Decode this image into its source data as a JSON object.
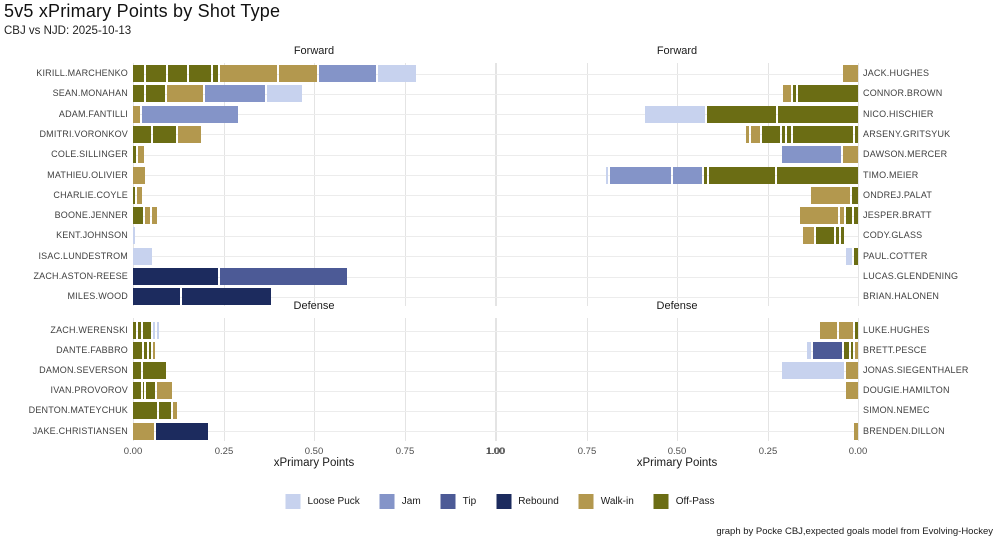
{
  "chart_data": {
    "type": "bar",
    "variant": "horizontal-stacked-faceted-pyramid",
    "title": "5v5 xPrimary Points by Shot Type",
    "subtitle": "CBJ vs NJD: 2025-10-13",
    "caption": "graph by Pocke CBJ,expected goals model from Evolving-Hockey",
    "x_axis": {
      "label": "xPrimary Points",
      "ticks": [
        "0.00",
        "0.25",
        "0.50",
        "0.75",
        "1.00"
      ],
      "tick_values": [
        0,
        0.25,
        0.5,
        0.75,
        1.0
      ],
      "lim": [
        0,
        1
      ],
      "right_panel_reversed": true,
      "grid": "major-vertical-and-row-lines"
    },
    "legend_position": "bottom",
    "shot_types": [
      {
        "key": "loose",
        "label": "Loose Puck",
        "color": "#c7d2ee"
      },
      {
        "key": "jam",
        "label": "Jam",
        "color": "#8494c8"
      },
      {
        "key": "tip",
        "label": "Tip",
        "color": "#4c5a96"
      },
      {
        "key": "rebound",
        "label": "Rebound",
        "color": "#1c2b5e"
      },
      {
        "key": "walkin",
        "label": "Walk-in",
        "color": "#b3984e"
      },
      {
        "key": "offpass",
        "label": "Off-Pass",
        "color": "#6b6d14"
      }
    ],
    "facets": [
      {
        "label": "Forward",
        "side": "left",
        "team": "CBJ",
        "rows": [
          {
            "player": "KIRILL.MARCHENKO",
            "segments": [
              [
                "offpass",
                0.03
              ],
              [
                "offpass",
                0.055
              ],
              [
                "offpass",
                0.052
              ],
              [
                "offpass",
                0.063
              ],
              [
                "offpass",
                0.014
              ],
              [
                "walkin",
                0.157
              ],
              [
                "walkin",
                0.105
              ],
              [
                "jam",
                0.157
              ],
              [
                "loose",
                0.105
              ]
            ]
          },
          {
            "player": "SEAN.MONAHAN",
            "segments": [
              [
                "offpass",
                0.03
              ],
              [
                "offpass",
                0.053
              ],
              [
                "walkin",
                0.098
              ],
              [
                "jam",
                0.166
              ],
              [
                "loose",
                0.097
              ]
            ]
          },
          {
            "player": "ADAM.FANTILLI",
            "segments": [
              [
                "walkin",
                0.018
              ],
              [
                "jam",
                0.267
              ]
            ]
          },
          {
            "player": "DMITRI.VORONKOV",
            "segments": [
              [
                "offpass",
                0.049
              ],
              [
                "offpass",
                0.064
              ],
              [
                "walkin",
                0.063
              ]
            ]
          },
          {
            "player": "COLE.SILLINGER",
            "segments": [
              [
                "offpass",
                0.007
              ],
              [
                "walkin",
                0.018
              ]
            ]
          },
          {
            "player": "MATHIEU.OLIVIER",
            "segments": [
              [
                "walkin",
                0.033
              ]
            ]
          },
          {
            "player": "CHARLIE.COYLE",
            "segments": [
              [
                "offpass",
                0.006
              ],
              [
                "walkin",
                0.013
              ]
            ]
          },
          {
            "player": "BOONE.JENNER",
            "segments": [
              [
                "offpass",
                0.029
              ],
              [
                "walkin",
                0.013
              ],
              [
                "walkin",
                0.014
              ]
            ]
          },
          {
            "player": "KENT.JOHNSON",
            "segments": [
              [
                "loose",
                0.004
              ]
            ]
          },
          {
            "player": "ISAC.LUNDESTROM",
            "segments": [
              [
                "loose",
                0.052
              ]
            ]
          },
          {
            "player": "ZACH.ASTON-REESE",
            "segments": [
              [
                "rebound",
                0.235
              ],
              [
                "tip",
                0.352
              ]
            ]
          },
          {
            "player": "MILES.WOOD",
            "segments": [
              [
                "rebound",
                0.13
              ],
              [
                "rebound",
                0.245
              ]
            ]
          }
        ]
      },
      {
        "label": "Forward",
        "side": "right",
        "team": "NJD",
        "rows": [
          {
            "player": "JACK.HUGHES",
            "segments": [
              [
                "walkin",
                0.041
              ]
            ]
          },
          {
            "player": "CONNOR.BROWN",
            "segments": [
              [
                "offpass",
                0.166
              ],
              [
                "offpass",
                0.007
              ],
              [
                "walkin",
                0.023
              ]
            ]
          },
          {
            "player": "NICO.HISCHIER",
            "segments": [
              [
                "offpass",
                0.221
              ],
              [
                "offpass",
                0.19
              ],
              [
                "loose",
                0.166
              ]
            ]
          },
          {
            "player": "ARSENY.GRITSYUK",
            "segments": [
              [
                "offpass",
                0.007
              ],
              [
                "offpass",
                0.168
              ],
              [
                "offpass",
                0.009
              ],
              [
                "offpass",
                0.01
              ],
              [
                "offpass",
                0.05
              ],
              [
                "walkin",
                0.025
              ],
              [
                "walkin",
                0.007
              ]
            ]
          },
          {
            "player": "DAWSON.MERCER",
            "segments": [
              [
                "walkin",
                0.041
              ],
              [
                "jam",
                0.163
              ]
            ]
          },
          {
            "player": "TIMO.MEIER",
            "segments": [
              [
                "offpass",
                0.224
              ],
              [
                "offpass",
                0.182
              ],
              [
                "offpass",
                0.009
              ],
              [
                "jam",
                0.08
              ],
              [
                "jam",
                0.168
              ],
              [
                "loose",
                0.007
              ]
            ]
          },
          {
            "player": "ONDREJ.PALAT",
            "segments": [
              [
                "offpass",
                0.017
              ],
              [
                "walkin",
                0.108
              ]
            ]
          },
          {
            "player": "JESPER.BRATT",
            "segments": [
              [
                "offpass",
                0.012
              ],
              [
                "offpass",
                0.015
              ],
              [
                "walkin",
                0.012
              ],
              [
                "walkin",
                0.104
              ]
            ]
          },
          {
            "player": "CODY.GLASS",
            "offset": 0.038,
            "segments": [
              [
                "offpass",
                0.009
              ],
              [
                "offpass",
                0.009
              ],
              [
                "offpass",
                0.05
              ],
              [
                "walkin",
                0.03
              ]
            ]
          },
          {
            "player": "PAUL.COTTER",
            "segments": [
              [
                "offpass",
                0.012
              ],
              [
                "loose",
                0.015
              ]
            ]
          },
          {
            "player": "LUCAS.GLENDENING",
            "segments": []
          },
          {
            "player": "BRIAN.HALONEN",
            "segments": []
          }
        ]
      },
      {
        "label": "Defense",
        "side": "left",
        "team": "CBJ",
        "rows": [
          {
            "player": "ZACH.WERENSKI",
            "segments": [
              [
                "offpass",
                0.007
              ],
              [
                "offpass",
                0.009
              ],
              [
                "offpass",
                0.022
              ],
              [
                "loose",
                0.006
              ],
              [
                "loose",
                0.005
              ]
            ]
          },
          {
            "player": "DANTE.FABBRO",
            "segments": [
              [
                "offpass",
                0.025
              ],
              [
                "offpass",
                0.007
              ],
              [
                "offpass",
                0.006
              ],
              [
                "walkin",
                0.006
              ]
            ]
          },
          {
            "player": "DAMON.SEVERSON",
            "segments": [
              [
                "offpass",
                0.021
              ],
              [
                "offpass",
                0.066
              ]
            ]
          },
          {
            "player": "IVAN.PROVOROV",
            "segments": [
              [
                "offpass",
                0.021
              ],
              [
                "offpass",
                0.005
              ],
              [
                "offpass",
                0.025
              ],
              [
                "walkin",
                0.039
              ]
            ]
          },
          {
            "player": "DENTON.MATEYCHUK",
            "segments": [
              [
                "offpass",
                0.067
              ],
              [
                "offpass",
                0.032
              ],
              [
                "walkin",
                0.011
              ]
            ]
          },
          {
            "player": "JAKE.CHRISTIANSEN",
            "segments": [
              [
                "walkin",
                0.058
              ],
              [
                "rebound",
                0.143
              ]
            ]
          }
        ]
      },
      {
        "label": "Defense",
        "side": "right",
        "team": "NJD",
        "rows": [
          {
            "player": "LUKE.HUGHES",
            "segments": [
              [
                "offpass",
                0.008
              ],
              [
                "walkin",
                0.04
              ],
              [
                "walkin",
                0.046
              ]
            ]
          },
          {
            "player": "BRETT.PESCE",
            "segments": [
              [
                "walkin",
                0.007
              ],
              [
                "offpass",
                0.007
              ],
              [
                "offpass",
                0.015
              ],
              [
                "tip",
                0.08
              ],
              [
                "loose",
                0.009
              ]
            ]
          },
          {
            "player": "JONAS.SIEGENTHALER",
            "segments": [
              [
                "walkin",
                0.034
              ],
              [
                "loose",
                0.17
              ]
            ]
          },
          {
            "player": "DOUGIE.HAMILTON",
            "segments": [
              [
                "walkin",
                0.034
              ]
            ]
          },
          {
            "player": "SIMON.NEMEC",
            "segments": []
          },
          {
            "player": "BRENDEN.DILLON",
            "segments": [
              [
                "walkin",
                0.012
              ]
            ]
          }
        ]
      }
    ]
  }
}
